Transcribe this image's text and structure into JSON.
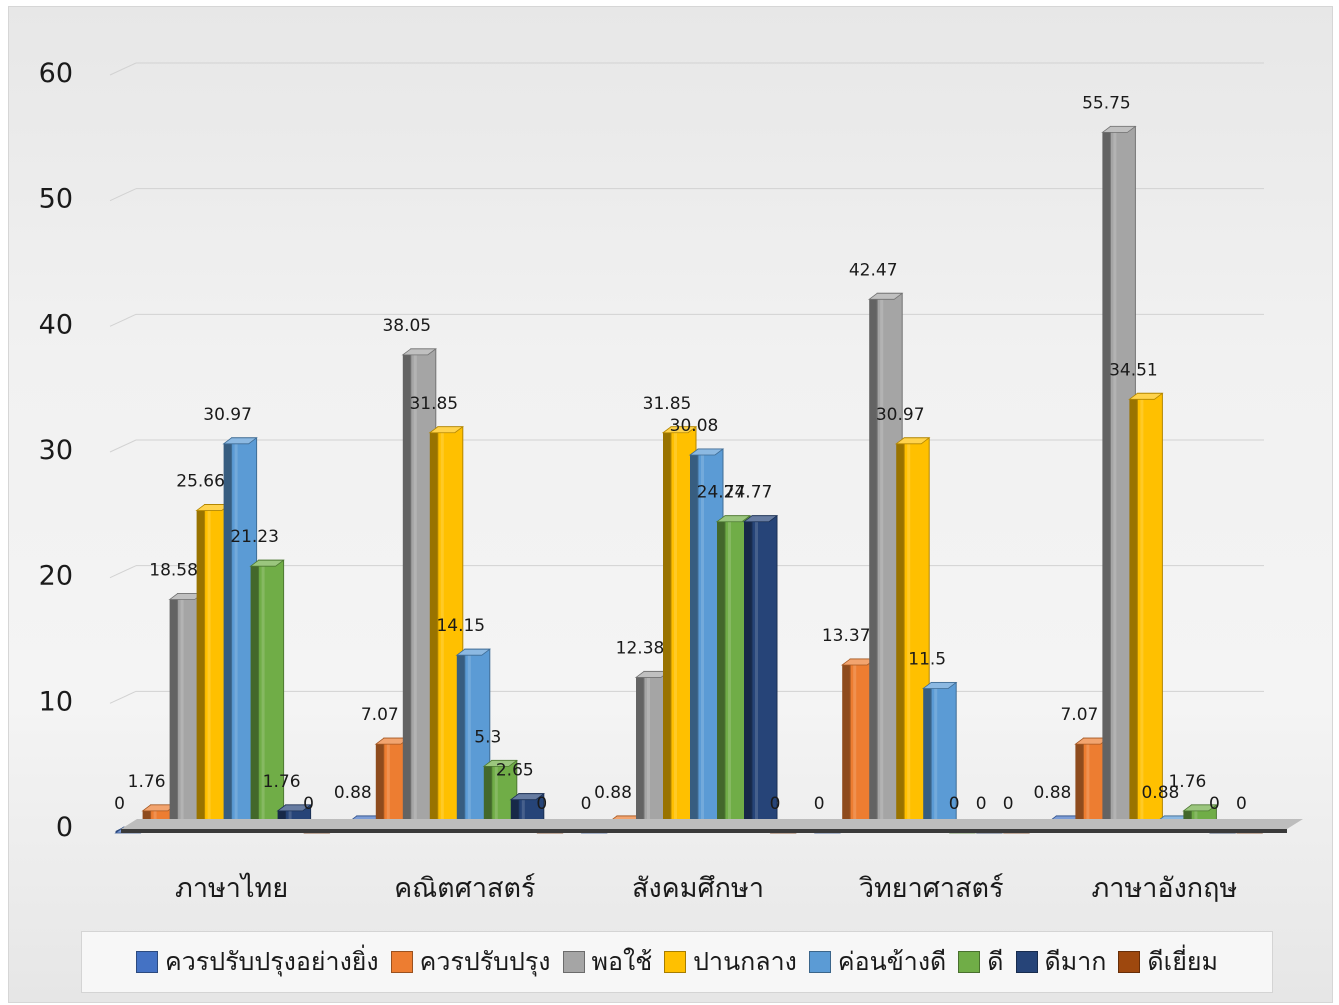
{
  "chart_data": {
    "type": "bar",
    "categories": [
      "ภาษาไทย",
      "คณิตศาสตร์",
      "สังคมศึกษา",
      "วิทยาศาสตร์",
      "ภาษาอังกฤษ"
    ],
    "series": [
      {
        "name": "ควรปรับปรุงอย่างยิ่ง",
        "color": "#4472c4",
        "values": [
          0,
          0.88,
          0,
          0,
          0.88
        ]
      },
      {
        "name": "ควรปรับปรุง",
        "color": "#ed7d31",
        "values": [
          1.76,
          7.07,
          0.88,
          13.37,
          7.07
        ]
      },
      {
        "name": "พอใช้",
        "color": "#a5a5a5",
        "values": [
          18.58,
          38.05,
          12.38,
          42.47,
          55.75
        ]
      },
      {
        "name": "ปานกลาง",
        "color": "#ffc000",
        "values": [
          25.66,
          31.85,
          31.85,
          30.97,
          34.51
        ]
      },
      {
        "name": "ค่อนข้างดี",
        "color": "#5b9bd5",
        "values": [
          30.97,
          14.15,
          30.08,
          11.5,
          0.88
        ]
      },
      {
        "name": "ดี",
        "color": "#70ad47",
        "values": [
          21.23,
          5.3,
          24.77,
          0,
          1.76
        ]
      },
      {
        "name": "ดีมาก",
        "color": "#264478",
        "values": [
          1.76,
          2.65,
          24.77,
          0,
          0
        ]
      },
      {
        "name": "ดีเยี่ยม",
        "color": "#9e480e",
        "values": [
          0,
          0,
          0,
          0,
          0
        ]
      }
    ],
    "title": "",
    "xlabel": "",
    "ylabel": "",
    "ylim": [
      0,
      60
    ],
    "yticks": [
      "0",
      "10",
      "20",
      "30",
      "40",
      "50",
      "60"
    ],
    "grid": true,
    "legend_position": "bottom",
    "style": "3d-clustered-column"
  }
}
